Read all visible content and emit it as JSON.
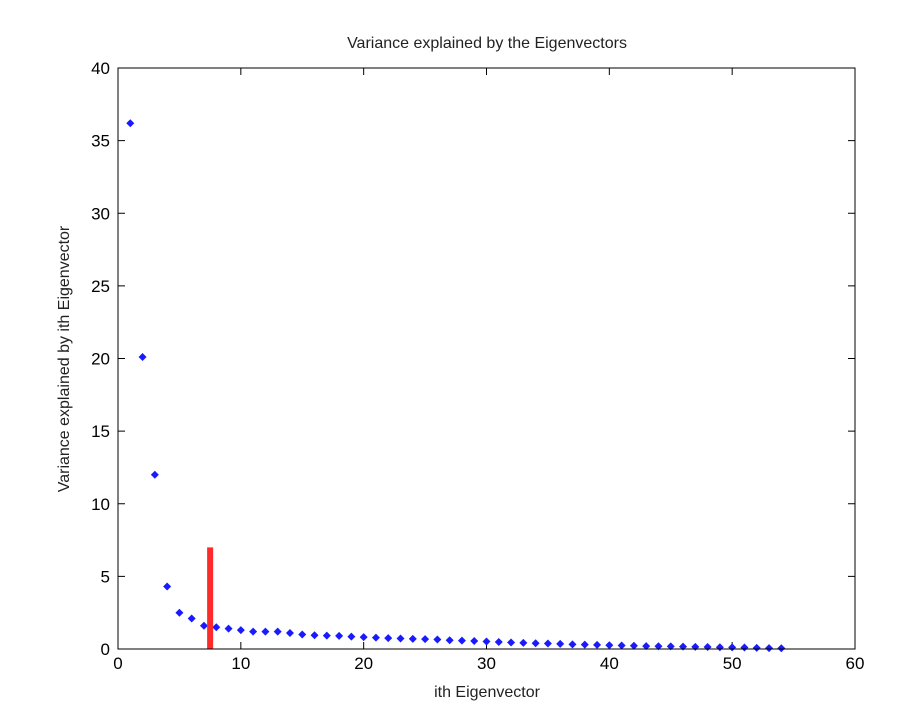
{
  "chart_data": {
    "type": "scatter",
    "title": "Variance explained by the Eigenvectors",
    "xlabel": "ith Eigenvector",
    "ylabel": "Variance explained by ith Eigenvector",
    "xlim": [
      0,
      60
    ],
    "ylim": [
      0,
      40
    ],
    "xticks": [
      "0",
      "10",
      "20",
      "30",
      "40",
      "50",
      "60"
    ],
    "yticks": [
      "0",
      "5",
      "10",
      "15",
      "20",
      "25",
      "30",
      "35",
      "40"
    ],
    "grid": false,
    "legend": "none",
    "series": [
      {
        "marker": "diamond",
        "color": "#1a1aff",
        "points": [
          [
            1,
            36.2
          ],
          [
            2,
            20.1
          ],
          [
            3,
            12.0
          ],
          [
            4,
            4.3
          ],
          [
            5,
            2.5
          ],
          [
            6,
            2.1
          ],
          [
            7,
            1.6
          ],
          [
            8,
            1.5
          ],
          [
            9,
            1.4
          ],
          [
            10,
            1.3
          ],
          [
            11,
            1.2
          ],
          [
            12,
            1.2
          ],
          [
            13,
            1.2
          ],
          [
            14,
            1.1
          ],
          [
            15,
            1.0
          ],
          [
            16,
            0.95
          ],
          [
            17,
            0.92
          ],
          [
            18,
            0.9
          ],
          [
            19,
            0.85
          ],
          [
            20,
            0.82
          ],
          [
            21,
            0.78
          ],
          [
            22,
            0.75
          ],
          [
            23,
            0.72
          ],
          [
            24,
            0.7
          ],
          [
            25,
            0.68
          ],
          [
            26,
            0.65
          ],
          [
            27,
            0.6
          ],
          [
            28,
            0.58
          ],
          [
            29,
            0.55
          ],
          [
            30,
            0.52
          ],
          [
            31,
            0.48
          ],
          [
            32,
            0.45
          ],
          [
            33,
            0.42
          ],
          [
            34,
            0.4
          ],
          [
            35,
            0.38
          ],
          [
            36,
            0.35
          ],
          [
            37,
            0.32
          ],
          [
            38,
            0.3
          ],
          [
            39,
            0.28
          ],
          [
            40,
            0.26
          ],
          [
            41,
            0.24
          ],
          [
            42,
            0.22
          ],
          [
            43,
            0.2
          ],
          [
            44,
            0.19
          ],
          [
            45,
            0.18
          ],
          [
            46,
            0.16
          ],
          [
            47,
            0.15
          ],
          [
            48,
            0.14
          ],
          [
            49,
            0.12
          ],
          [
            50,
            0.11
          ],
          [
            51,
            0.1
          ],
          [
            52,
            0.08
          ],
          [
            53,
            0.06
          ],
          [
            54,
            0.05
          ]
        ]
      }
    ],
    "reference_line": {
      "x": 7.5,
      "y_from": 0,
      "y_to": 7,
      "color": "#ff2a2a"
    }
  }
}
